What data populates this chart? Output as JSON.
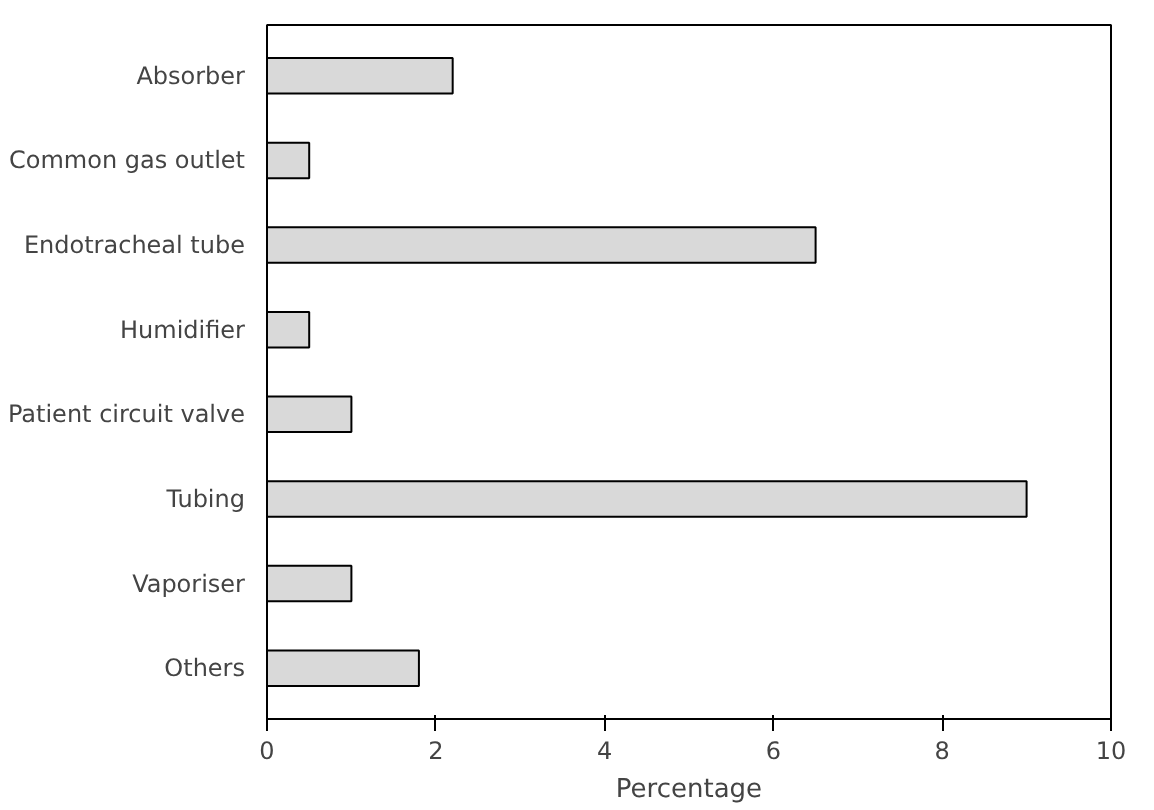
{
  "chart_data": {
    "type": "bar",
    "orientation": "horizontal",
    "xlabel": "Percentage",
    "categories": [
      "Absorber",
      "Common gas outlet",
      "Endotracheal tube",
      "Humidifier",
      "Patient circuit valve",
      "Tubing",
      "Vaporiser",
      "Others"
    ],
    "values": [
      2.2,
      0.5,
      6.5,
      0.5,
      1.0,
      9.0,
      1.0,
      1.8
    ],
    "color": "#d9d9d9",
    "xlim": [
      0,
      10
    ],
    "xticks": [
      0,
      2,
      4,
      6,
      8,
      10
    ],
    "grid": false
  }
}
